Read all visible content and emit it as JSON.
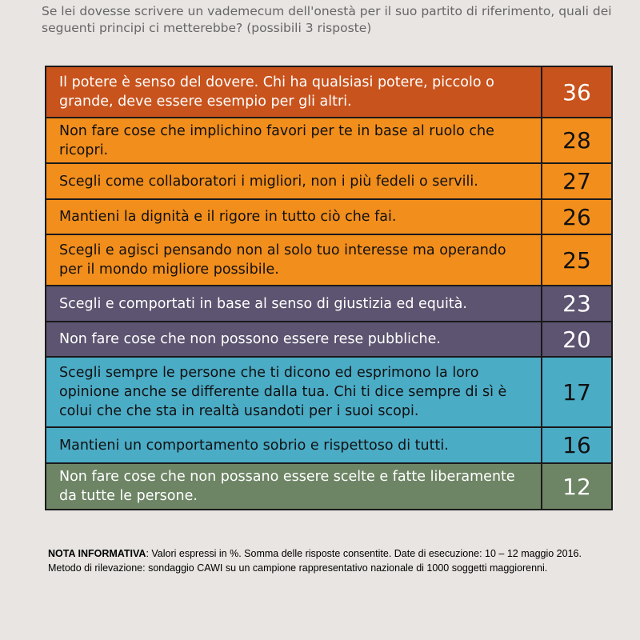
{
  "question": "Se lei dovesse scrivere un vademecum dell'onestà per il suo partito di riferimento, quali dei seguenti principi ci metterebbe? (possibili 3 risposte)",
  "colors": {
    "dark_orange": "#c9531d",
    "orange": "#f28e1c",
    "purple": "#5c5470",
    "blue": "#4bacc6",
    "green": "#6d8565",
    "text_dark": "#111111",
    "text_light": "#ffffff"
  },
  "chart_data": {
    "type": "table",
    "rows": [
      {
        "label": "Il potere è senso del dovere. Chi ha qualsiasi potere, piccolo o grande, deve essere esempio per gli altri.",
        "value": 36,
        "color": "#c9531d",
        "text_color": "#ffffff"
      },
      {
        "label": "Non fare cose che implichino favori per te in base al ruolo che ricopri.",
        "value": 28,
        "color": "#f28e1c",
        "text_color": "#111111"
      },
      {
        "label": "Scegli come collaboratori i migliori, non i più fedeli o servili.",
        "value": 27,
        "color": "#f28e1c",
        "text_color": "#111111"
      },
      {
        "label": "Mantieni la dignità e il rigore in tutto ciò che fai.",
        "value": 26,
        "color": "#f28e1c",
        "text_color": "#111111"
      },
      {
        "label": "Scegli e agisci pensando non al solo tuo interesse ma operando per il mondo migliore possibile.",
        "value": 25,
        "color": "#f28e1c",
        "text_color": "#111111"
      },
      {
        "label": "Scegli e comportati in base al senso di giustizia ed equità.",
        "value": 23,
        "color": "#5c5470",
        "text_color": "#ffffff"
      },
      {
        "label": "Non fare cose che non possono essere rese pubbliche.",
        "value": 20,
        "color": "#5c5470",
        "text_color": "#ffffff"
      },
      {
        "label": "Scegli sempre le persone che ti dicono ed esprimono la loro opinione anche se differente dalla tua. Chi ti dice sempre di sì è colui che che sta in realtà usandoti per i suoi scopi.",
        "value": 17,
        "color": "#4bacc6",
        "text_color": "#111111"
      },
      {
        "label": "Mantieni un comportamento sobrio e rispettoso di tutti.",
        "value": 16,
        "color": "#4bacc6",
        "text_color": "#111111"
      },
      {
        "label": "Non fare cose che non possano essere scelte e fatte liberamente da tutte le persone.",
        "value": 12,
        "color": "#6d8565",
        "text_color": "#ffffff"
      }
    ]
  },
  "note": {
    "label": "NOTA INFORMATIVA",
    "text": ": Valori espressi in %. Somma delle risposte consentite. Date di esecuzione: 10 – 12 maggio 2016. Metodo di rilevazione: sondaggio CAWI su un campione rappresentativo nazionale di 1000 soggetti maggiorenni."
  }
}
